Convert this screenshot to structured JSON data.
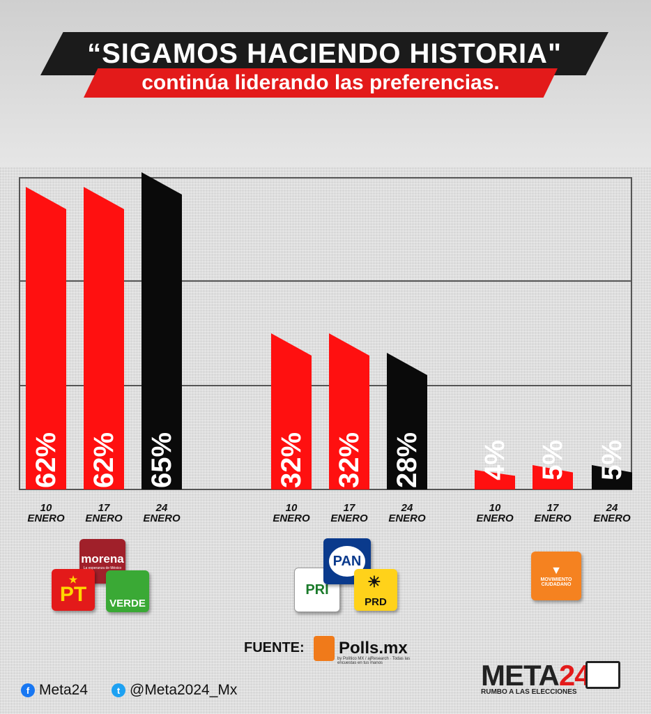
{
  "header": {
    "title": "“SIGAMOS HACIENDO HISTORIA\"",
    "subtitle": "continúa liderando las preferencias."
  },
  "colors": {
    "red": "#ff1010",
    "black": "#0a0a0a",
    "panel_border": "#555555"
  },
  "chart_data": {
    "type": "bar",
    "ylim": [
      0,
      70
    ],
    "grid": true,
    "groups": [
      {
        "parties": [
          "morena",
          "PT",
          "VERDE"
        ],
        "bars": [
          {
            "date": "10 ENERO",
            "value": 62,
            "label": "62%",
            "color": "red"
          },
          {
            "date": "17 ENERO",
            "value": 62,
            "label": "62%",
            "color": "red"
          },
          {
            "date": "24 ENERO",
            "value": 65,
            "label": "65%",
            "color": "black"
          }
        ]
      },
      {
        "parties": [
          "PAN",
          "PRI",
          "PRD"
        ],
        "bars": [
          {
            "date": "10 ENERO",
            "value": 32,
            "label": "32%",
            "color": "red"
          },
          {
            "date": "17 ENERO",
            "value": 32,
            "label": "32%",
            "color": "red"
          },
          {
            "date": "24 ENERO",
            "value": 28,
            "label": "28%",
            "color": "black"
          }
        ]
      },
      {
        "parties": [
          "MOVIMIENTO CIUDADANO"
        ],
        "bars": [
          {
            "date": "10 ENERO",
            "value": 4,
            "label": "4%",
            "color": "red"
          },
          {
            "date": "17 ENERO",
            "value": 5,
            "label": "5%",
            "color": "red"
          },
          {
            "date": "24 ENERO",
            "value": 5,
            "label": "5%",
            "color": "black"
          }
        ]
      }
    ]
  },
  "logos": {
    "morena": "morena",
    "morena_tag": "La esperanza de México",
    "pt": "PT",
    "verde": "VERDE",
    "pan": "PAN",
    "pri": "PRI",
    "prd": "PRD",
    "mc_line1": "MOVIMIENTO",
    "mc_line2": "CIUDADANO"
  },
  "footer": {
    "fuente_label": "FUENTE:",
    "polls_name": "Polls.mx",
    "polls_sub": "by Político MX / ajResearch · Todas las encuestas en tus manos",
    "facebook": "Meta24",
    "twitter": "@Meta2024_Mx",
    "meta_word": "META",
    "meta_num": "24",
    "meta_sub": "RUMBO A LAS ELECCIONES"
  }
}
